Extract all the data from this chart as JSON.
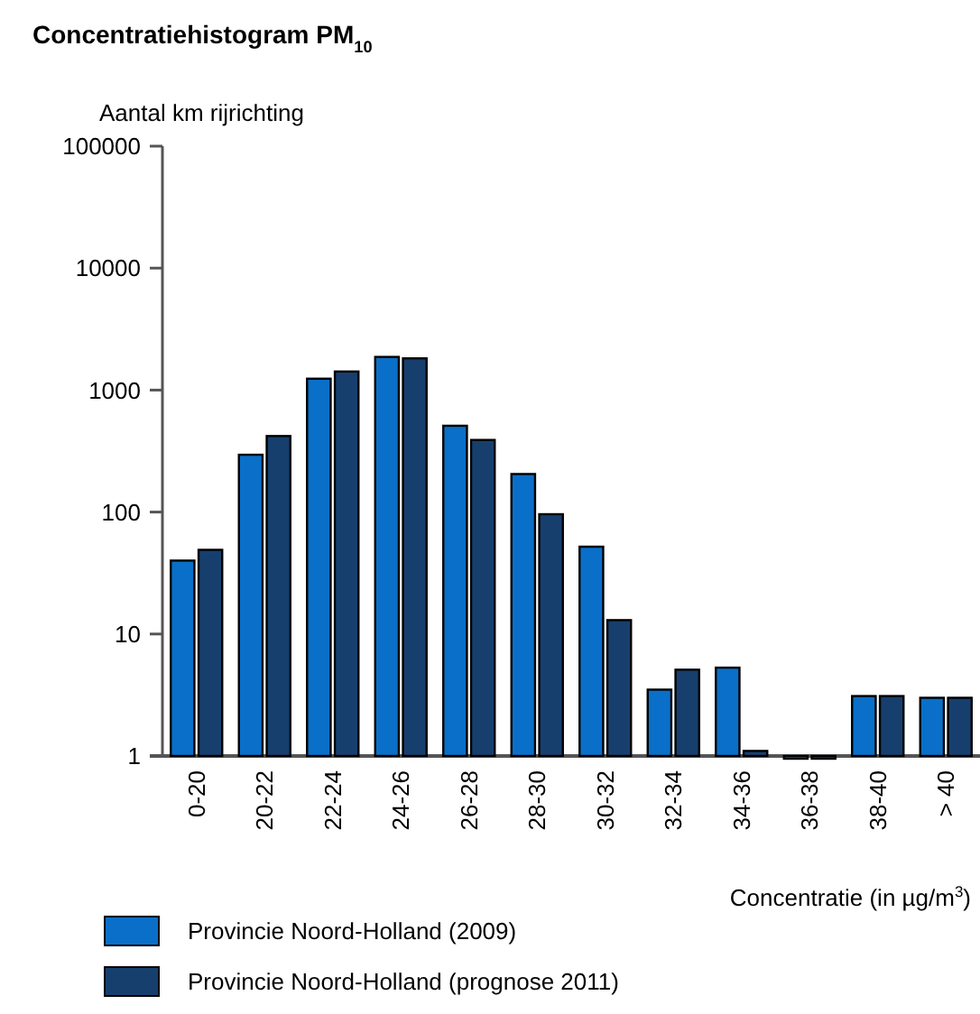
{
  "chart_data": {
    "type": "bar",
    "title": "Concentratiehistogram PM$_{10}$",
    "ylabel": "Aantal km rijrichting",
    "xlabel": "Concentratie (in µg/m$^{3}$)",
    "categories": [
      "0-20",
      "20-22",
      "22-24",
      "24-26",
      "26-28",
      "28-30",
      "30-32",
      "32-34",
      "34-36",
      "36-38",
      "38-40",
      "> 40"
    ],
    "series": [
      {
        "name": "Provincie Noord-Holland (2009)",
        "color": "#0a6fc8",
        "values": [
          40,
          295,
          1240,
          1870,
          510,
          205,
          52,
          3.5,
          5.3,
          1,
          3.1,
          3
        ]
      },
      {
        "name": "Provincie Noord-Holland (prognose 2011)",
        "color": "#173f6e",
        "values": [
          49,
          420,
          1420,
          1820,
          390,
          96,
          13,
          5.1,
          1.1,
          1,
          3.1,
          3
        ]
      }
    ],
    "log": true,
    "ylim": [
      1,
      100000
    ],
    "yticks": [
      1,
      10,
      100,
      1000,
      10000,
      100000
    ],
    "legend": "bottom",
    "grid": false
  }
}
